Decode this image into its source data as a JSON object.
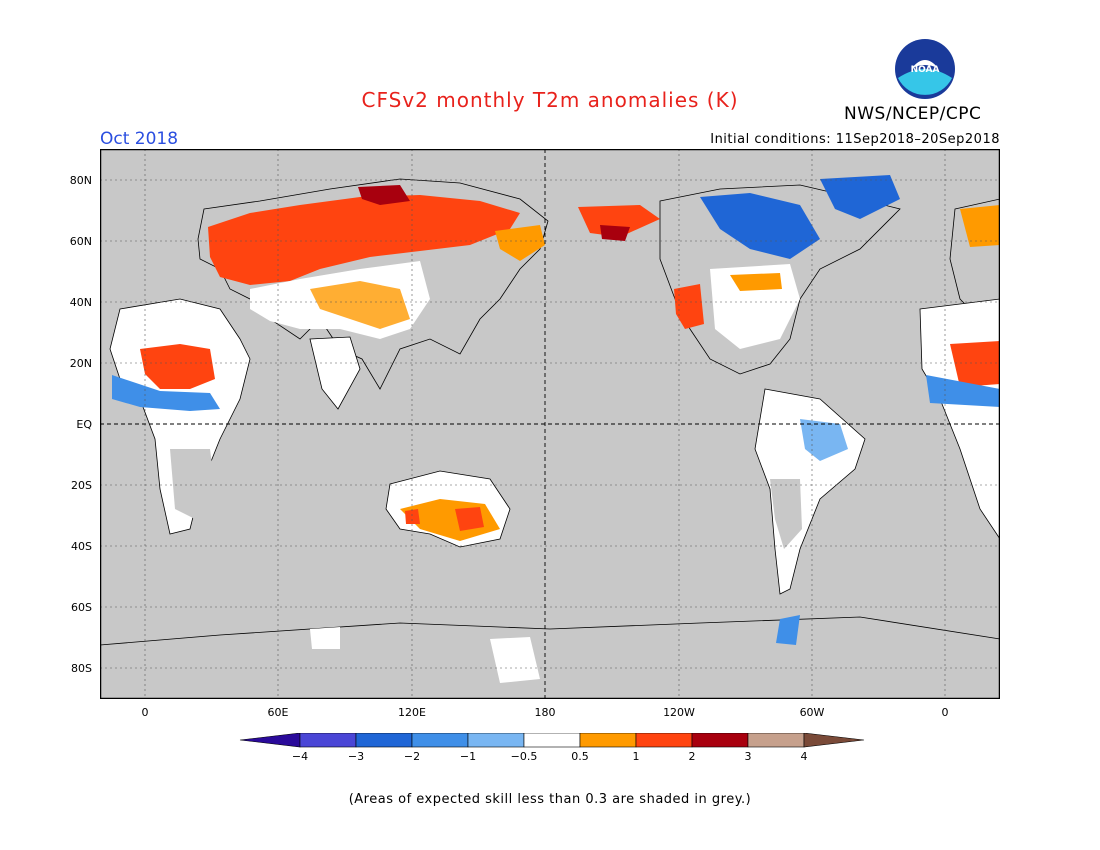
{
  "header": {
    "title": "CFSv2 monthly T2m anomalies (K)",
    "agency": "NWS/NCEP/CPC",
    "month": "Oct 2018",
    "initial_conditions": "Initial conditions: 11Sep2018–20Sep2018"
  },
  "logo": {
    "text": "NOAA"
  },
  "map": {
    "lat_labels": [
      "80N",
      "60N",
      "40N",
      "20N",
      "EQ",
      "20S",
      "40S",
      "60S",
      "80S"
    ],
    "lon_labels": [
      "0",
      "60E",
      "120E",
      "180",
      "120W",
      "60W",
      "0"
    ]
  },
  "legend": {
    "tick_labels": [
      "−4",
      "−3",
      "−2",
      "−1",
      "−0.5",
      "0.5",
      "1",
      "2",
      "3",
      "4"
    ],
    "colors": [
      "#2a0a9a",
      "#4a46d6",
      "#1f66d6",
      "#3f8fe8",
      "#79b6f2",
      "#ffffff",
      "#ff9a00",
      "#ff4410",
      "#a8000e",
      "#c6a08c",
      "#7a4a38"
    ],
    "ocean_color": "#c8c8c8",
    "low_skill_color": "#c8c8c8"
  },
  "footnote": "(Areas of expected skill less than 0.3 are shaded in grey.)"
}
